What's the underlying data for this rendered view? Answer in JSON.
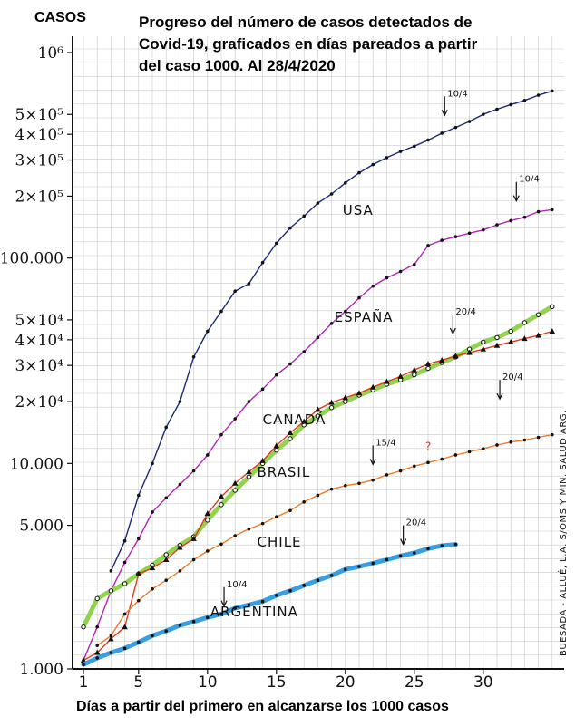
{
  "chart_data": {
    "type": "line",
    "title_lines": [
      "Progreso del número de casos detectados de",
      "Covid-19, graficados en días pareados a partir",
      "del caso 1000. Al 28/4/2020"
    ],
    "ylabel": "CASOS",
    "xlabel": "Días a partir del primero en alcanzarse los 1000 casos",
    "y_scale": "log",
    "ylim": [
      1000,
      1000000
    ],
    "xlim": [
      1,
      35
    ],
    "grid": true,
    "y_ticks": [
      {
        "value": 1000,
        "label": "1.000"
      },
      {
        "value": 5000,
        "label": "5.000"
      },
      {
        "value": 10000,
        "label": "10.000"
      },
      {
        "value": 20000,
        "label": "2×10⁴"
      },
      {
        "value": 30000,
        "label": "3×10⁴"
      },
      {
        "value": 40000,
        "label": "4×10⁴"
      },
      {
        "value": 50000,
        "label": "5×10⁴"
      },
      {
        "value": 100000,
        "label": "100.000"
      },
      {
        "value": 200000,
        "label": "2×10⁵"
      },
      {
        "value": 300000,
        "label": "3×10⁵"
      },
      {
        "value": 400000,
        "label": "4×10⁵"
      },
      {
        "value": 500000,
        "label": "5×10⁵"
      },
      {
        "value": 1000000,
        "label": "10⁶"
      }
    ],
    "x_ticks": [
      {
        "value": 1,
        "label": "1"
      },
      {
        "value": 5,
        "label": "5"
      },
      {
        "value": 10,
        "label": "10"
      },
      {
        "value": 15,
        "label": "15"
      },
      {
        "value": 20,
        "label": "20"
      },
      {
        "value": 25,
        "label": "25"
      },
      {
        "value": 30,
        "label": "30"
      }
    ],
    "series": [
      {
        "name": "USA",
        "color": "#1b2a7a",
        "x": [
          3,
          4,
          5,
          6,
          7,
          8,
          9,
          10,
          11,
          12,
          13,
          14,
          15,
          16,
          17,
          18,
          19,
          20,
          21,
          22,
          23,
          24,
          25,
          26,
          27,
          28,
          29,
          30,
          31,
          32,
          33,
          34,
          35
        ],
        "y": [
          3000,
          4200,
          7000,
          10000,
          15000,
          20000,
          33000,
          44000,
          55000,
          69000,
          75000,
          95000,
          118000,
          140000,
          160000,
          185000,
          205000,
          232000,
          260000,
          285000,
          308000,
          330000,
          350000,
          375000,
          405000,
          432000,
          462000,
          500000,
          530000,
          558000,
          585000,
          620000,
          650000
        ],
        "label_x": 19.8,
        "label_y": 162000
      },
      {
        "name": "ESPAÑA",
        "color": "#b524b8",
        "x": [
          1,
          2,
          3,
          4,
          5,
          6,
          7,
          8,
          9,
          10,
          11,
          12,
          13,
          14,
          15,
          16,
          17,
          18,
          19,
          20,
          21,
          22,
          23,
          24,
          25,
          26,
          27,
          28,
          29,
          30,
          31,
          32,
          33,
          34,
          35
        ],
        "y": [
          1100,
          1600,
          2400,
          3300,
          4300,
          5800,
          6800,
          7900,
          9200,
          11000,
          13800,
          16500,
          20000,
          23000,
          27000,
          30500,
          35000,
          41000,
          48000,
          55000,
          64000,
          73000,
          80000,
          86000,
          93000,
          115000,
          122000,
          127000,
          132000,
          137000,
          145000,
          152000,
          158000,
          168000,
          172000
        ],
        "label_x": 19.2,
        "label_y": 49000
      },
      {
        "name": "CANADÁ",
        "color": "#8fd34e",
        "x": [
          1,
          2,
          3,
          4,
          5,
          6,
          7,
          8,
          9,
          10,
          11,
          12,
          13,
          14,
          15,
          16,
          17,
          18,
          19,
          20,
          21,
          22,
          23,
          24,
          25,
          26,
          27,
          28,
          29,
          30,
          31,
          32,
          33,
          34,
          35
        ],
        "y": [
          1600,
          2200,
          2400,
          2600,
          2900,
          3200,
          3600,
          4000,
          4400,
          5300,
          6300,
          7400,
          8600,
          10000,
          11600,
          13200,
          15400,
          17000,
          18700,
          20000,
          21500,
          22800,
          24300,
          25500,
          27000,
          29000,
          31000,
          33000,
          36000,
          39000,
          41000,
          44000,
          48500,
          53000,
          58000
        ],
        "label_x": 14.0,
        "label_y": 15500
      },
      {
        "name": "BRASIL",
        "color": "#e03a1e",
        "x": [
          1,
          2,
          3,
          4,
          5,
          6,
          7,
          8,
          9,
          10,
          11,
          12,
          13,
          14,
          15,
          16,
          17,
          18,
          19,
          20,
          21,
          22,
          23,
          24,
          25,
          26,
          27,
          28,
          29,
          30,
          31,
          32,
          33,
          34,
          35
        ],
        "y": [
          1100,
          1200,
          1400,
          1600,
          2900,
          3100,
          3400,
          3900,
          4300,
          5700,
          6900,
          8000,
          9100,
          10300,
          12200,
          14100,
          16000,
          18300,
          19800,
          20900,
          22000,
          23500,
          25000,
          26500,
          28500,
          30500,
          31800,
          33300,
          34600,
          36000,
          37500,
          39000,
          40500,
          42000,
          44000
        ],
        "label_x": 13.6,
        "label_y": 8600
      },
      {
        "name": "CHILE",
        "color": "#f07a26",
        "x": [
          2,
          3,
          4,
          5,
          6,
          7,
          8,
          9,
          10,
          11,
          12,
          13,
          14,
          15,
          16,
          17,
          18,
          19,
          20,
          21,
          22,
          23,
          24,
          25,
          26,
          27,
          28,
          29,
          30,
          31,
          32,
          33,
          34,
          35
        ],
        "y": [
          1300,
          1450,
          1850,
          2150,
          2450,
          2700,
          3000,
          3400,
          3750,
          4050,
          4450,
          4800,
          5100,
          5500,
          5900,
          6500,
          7000,
          7500,
          7800,
          8000,
          8300,
          8800,
          9200,
          9700,
          10100,
          10500,
          11000,
          11400,
          11800,
          12300,
          12700,
          13000,
          13400,
          13800
        ],
        "label_x": 13.6,
        "label_y": 3950
      },
      {
        "name": "ARGENTINA",
        "color": "#3a9fe0",
        "x": [
          1,
          2,
          3,
          4,
          5,
          6,
          7,
          8,
          9,
          10,
          11,
          12,
          13,
          14,
          15,
          16,
          17,
          18,
          19,
          20,
          21,
          22,
          23,
          24,
          25,
          26,
          27,
          28
        ],
        "y": [
          1050,
          1130,
          1200,
          1260,
          1350,
          1450,
          1530,
          1630,
          1700,
          1780,
          1850,
          1975,
          2050,
          2130,
          2280,
          2400,
          2550,
          2700,
          2850,
          3050,
          3150,
          3270,
          3400,
          3550,
          3670,
          3850,
          3980,
          4040
        ],
        "label_x": 10.2,
        "label_y": 1800
      }
    ],
    "annotations": [
      {
        "label": "10/4",
        "x": 27.2,
        "y": 600000
      },
      {
        "label": "10/4",
        "x": 32.4,
        "y": 230000
      },
      {
        "label": "20/4",
        "x": 27.8,
        "y": 52000
      },
      {
        "label": "20/4",
        "x": 31.2,
        "y": 25000
      },
      {
        "label": "15/4",
        "x": 22.0,
        "y": 12000
      },
      {
        "label": "20/4",
        "x": 24.2,
        "y": 4900
      },
      {
        "label": "10/4",
        "x": 11.2,
        "y": 2450
      },
      {
        "label": "?",
        "x": 25.8,
        "y": 11600
      }
    ],
    "source_note": "BUESADA - ALLUÉ, L.A. S/OMS Y MIN. SALUD ARG."
  }
}
